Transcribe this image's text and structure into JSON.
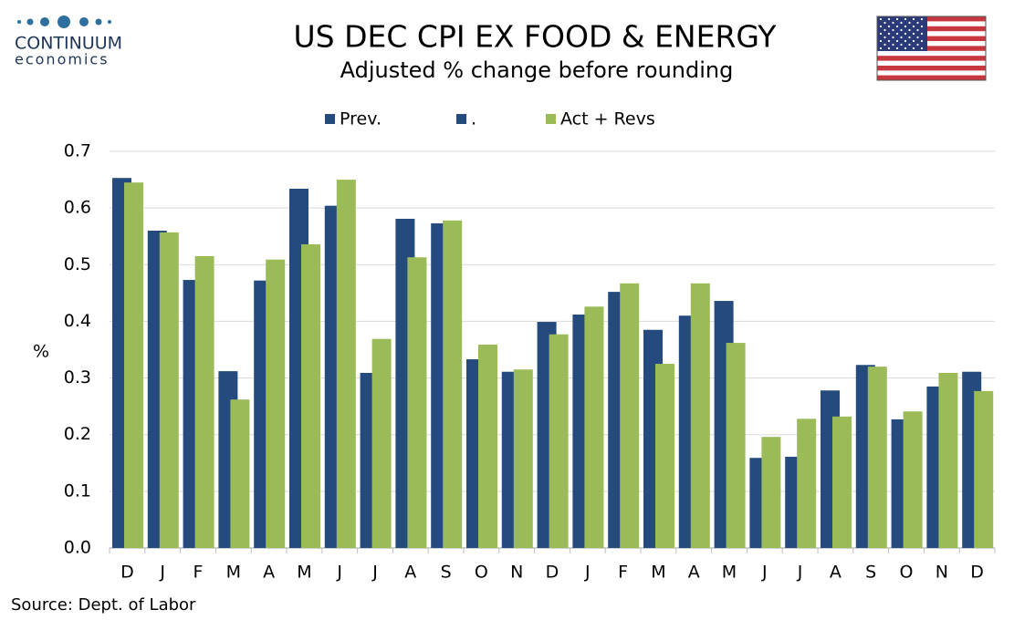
{
  "logo": {
    "name": "CONTINUUM",
    "tagline": "economics"
  },
  "chart_data": {
    "type": "bar",
    "title": "US DEC CPI EX FOOD & ENERGY",
    "subtitle": "Adjusted % change before rounding",
    "y_label": "%",
    "source": "Source: Dept. of Labor",
    "categories": [
      "D",
      "J",
      "F",
      "M",
      "A",
      "M",
      "J",
      "J",
      "A",
      "S",
      "O",
      "N",
      "D",
      "J",
      "F",
      "M",
      "A",
      "M",
      "J",
      "J",
      "A",
      "S",
      "O",
      "N",
      "D"
    ],
    "series": [
      {
        "name": "Prev.",
        "color": "#254a7d",
        "values": [
          0.653,
          0.56,
          0.473,
          0.312,
          0.472,
          0.634,
          0.604,
          0.309,
          0.581,
          0.573,
          0.333,
          0.311,
          0.399,
          0.412,
          0.452,
          0.385,
          0.41,
          0.436,
          0.159,
          0.161,
          0.278,
          0.323,
          0.227,
          0.285,
          null
        ]
      },
      {
        "name": ".",
        "color": "#254a7d",
        "values": [
          null,
          null,
          null,
          null,
          null,
          null,
          null,
          null,
          null,
          null,
          null,
          null,
          null,
          null,
          null,
          null,
          null,
          null,
          null,
          null,
          null,
          null,
          null,
          null,
          0.311
        ]
      },
      {
        "name": "Act + Revs",
        "color": "#9bbb59",
        "values": [
          0.645,
          0.557,
          0.515,
          0.262,
          0.509,
          0.536,
          0.65,
          0.369,
          0.513,
          0.578,
          0.359,
          0.315,
          0.377,
          0.426,
          0.467,
          0.325,
          0.467,
          0.362,
          0.196,
          0.228,
          0.232,
          0.32,
          0.241,
          0.309,
          0.277
        ]
      }
    ],
    "ylim": [
      0,
      0.7
    ],
    "yticks": [
      {
        "value": 0,
        "label": "0.0"
      },
      0.1,
      0.2,
      0.3,
      0.4,
      0.5,
      0.6,
      0.7
    ],
    "grid": true
  }
}
